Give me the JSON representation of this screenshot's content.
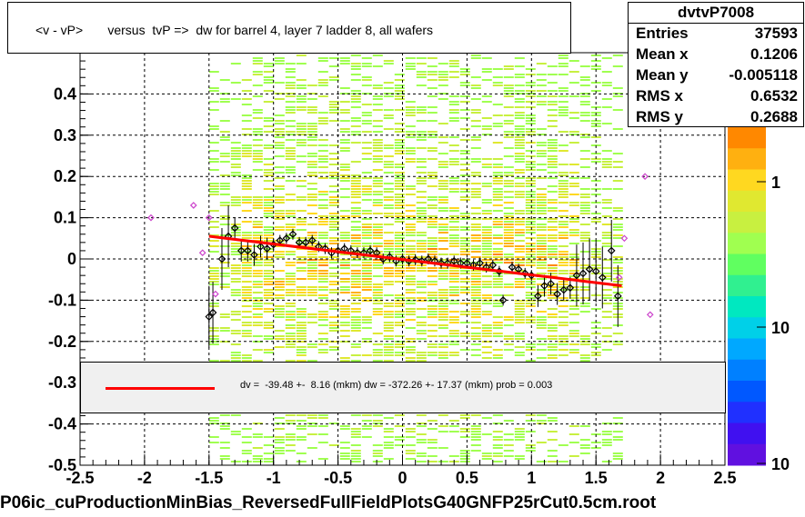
{
  "title": "<v - vP>       versus  tvP =>  dw for barrel 4, layer 7 ladder 8, all wafers",
  "stats": {
    "name": "dvtvP7008",
    "rows": [
      {
        "key": "Entries",
        "value": "37593"
      },
      {
        "key": "Mean x",
        "value": "0.1206"
      },
      {
        "key": "Mean y",
        "value": "-0.005118"
      },
      {
        "key": "RMS x",
        "value": "0.6532"
      },
      {
        "key": "RMS y",
        "value": "0.2688"
      }
    ]
  },
  "fit_text": "dv =  -39.48 +-  8.16 (mkm) dw = -372.26 +- 17.37 (mkm) prob = 0.003",
  "footer": "P06ic_cuProductionMinBias_ReversedFullFieldPlotsG40GNFP25rCut0.5cm.root",
  "colors": {
    "fit_line": "#ff0000",
    "profile_marker": "#000000",
    "secondary_marker": "#cc44cc",
    "fit_box_bg": "#f0f0f0"
  },
  "chart_data": {
    "type": "heatmap",
    "xlim": [
      -2.5,
      2.5
    ],
    "ylim": [
      -0.5,
      0.5
    ],
    "x_ticks": [
      "-2.5",
      "-2",
      "-1.5",
      "-1",
      "-0.5",
      "0",
      "0.5",
      "1",
      "1.5",
      "2",
      "2.5"
    ],
    "y_ticks": [
      "-0.5",
      "-0.4",
      "-0.3",
      "-0.2",
      "-0.1",
      "0",
      "0.1",
      "0.2",
      "0.3",
      "0.4"
    ],
    "colorbar_labels": [
      "1",
      "10",
      "10"
    ],
    "grid": true,
    "fit_line": {
      "x": [
        -1.5,
        1.7
      ],
      "y": [
        0.055,
        -0.065
      ]
    },
    "profile_points": [
      {
        "x": -1.5,
        "y": -0.14
      },
      {
        "x": -1.47,
        "y": -0.13
      },
      {
        "x": -1.4,
        "y": 0.0
      },
      {
        "x": -1.35,
        "y": 0.055
      },
      {
        "x": -1.3,
        "y": 0.075
      },
      {
        "x": -1.25,
        "y": 0.02
      },
      {
        "x": -1.2,
        "y": 0.02
      },
      {
        "x": -1.15,
        "y": 0.01
      },
      {
        "x": -1.1,
        "y": 0.03
      },
      {
        "x": -1.05,
        "y": 0.025
      },
      {
        "x": -1.0,
        "y": 0.035
      },
      {
        "x": -0.95,
        "y": 0.045
      },
      {
        "x": -0.9,
        "y": 0.05
      },
      {
        "x": -0.85,
        "y": 0.06
      },
      {
        "x": -0.8,
        "y": 0.04
      },
      {
        "x": -0.75,
        "y": 0.04
      },
      {
        "x": -0.7,
        "y": 0.045
      },
      {
        "x": -0.65,
        "y": 0.03
      },
      {
        "x": -0.6,
        "y": 0.025
      },
      {
        "x": -0.55,
        "y": 0.015
      },
      {
        "x": -0.5,
        "y": 0.02
      },
      {
        "x": -0.45,
        "y": 0.025
      },
      {
        "x": -0.4,
        "y": 0.02
      },
      {
        "x": -0.35,
        "y": 0.015
      },
      {
        "x": -0.3,
        "y": 0.015
      },
      {
        "x": -0.25,
        "y": 0.02
      },
      {
        "x": -0.2,
        "y": 0.015
      },
      {
        "x": -0.15,
        "y": 0.0
      },
      {
        "x": -0.1,
        "y": 0.005
      },
      {
        "x": -0.05,
        "y": -0.005
      },
      {
        "x": 0.0,
        "y": 0.0
      },
      {
        "x": 0.05,
        "y": -0.005
      },
      {
        "x": 0.1,
        "y": -0.002
      },
      {
        "x": 0.15,
        "y": -0.005
      },
      {
        "x": 0.2,
        "y": 0.0
      },
      {
        "x": 0.25,
        "y": -0.005
      },
      {
        "x": 0.3,
        "y": -0.01
      },
      {
        "x": 0.35,
        "y": -0.01
      },
      {
        "x": 0.4,
        "y": -0.005
      },
      {
        "x": 0.45,
        "y": -0.01
      },
      {
        "x": 0.5,
        "y": -0.01
      },
      {
        "x": 0.55,
        "y": -0.015
      },
      {
        "x": 0.6,
        "y": -0.01
      },
      {
        "x": 0.65,
        "y": -0.02
      },
      {
        "x": 0.7,
        "y": -0.015
      },
      {
        "x": 0.75,
        "y": -0.03
      },
      {
        "x": 0.78,
        "y": -0.1
      },
      {
        "x": 0.85,
        "y": -0.02
      },
      {
        "x": 0.9,
        "y": -0.025
      },
      {
        "x": 0.95,
        "y": -0.035
      },
      {
        "x": 1.0,
        "y": -0.04
      },
      {
        "x": 1.05,
        "y": -0.09
      },
      {
        "x": 1.1,
        "y": -0.065
      },
      {
        "x": 1.15,
        "y": -0.06
      },
      {
        "x": 1.2,
        "y": -0.085
      },
      {
        "x": 1.25,
        "y": -0.075
      },
      {
        "x": 1.3,
        "y": -0.07
      },
      {
        "x": 1.35,
        "y": -0.04
      },
      {
        "x": 1.4,
        "y": -0.035
      },
      {
        "x": 1.45,
        "y": -0.025
      },
      {
        "x": 1.5,
        "y": -0.03
      },
      {
        "x": 1.55,
        "y": -0.045
      },
      {
        "x": 1.62,
        "y": 0.02
      },
      {
        "x": 1.67,
        "y": -0.09
      }
    ],
    "secondary_points": [
      {
        "x": -1.95,
        "y": 0.1
      },
      {
        "x": -1.62,
        "y": 0.13
      },
      {
        "x": -1.55,
        "y": 0.015
      },
      {
        "x": -1.5,
        "y": 0.1
      },
      {
        "x": -1.45,
        "y": -0.085
      },
      {
        "x": 1.68,
        "y": -0.045
      },
      {
        "x": 1.72,
        "y": 0.05
      },
      {
        "x": 1.88,
        "y": 0.2
      },
      {
        "x": 1.92,
        "y": -0.135
      }
    ]
  }
}
